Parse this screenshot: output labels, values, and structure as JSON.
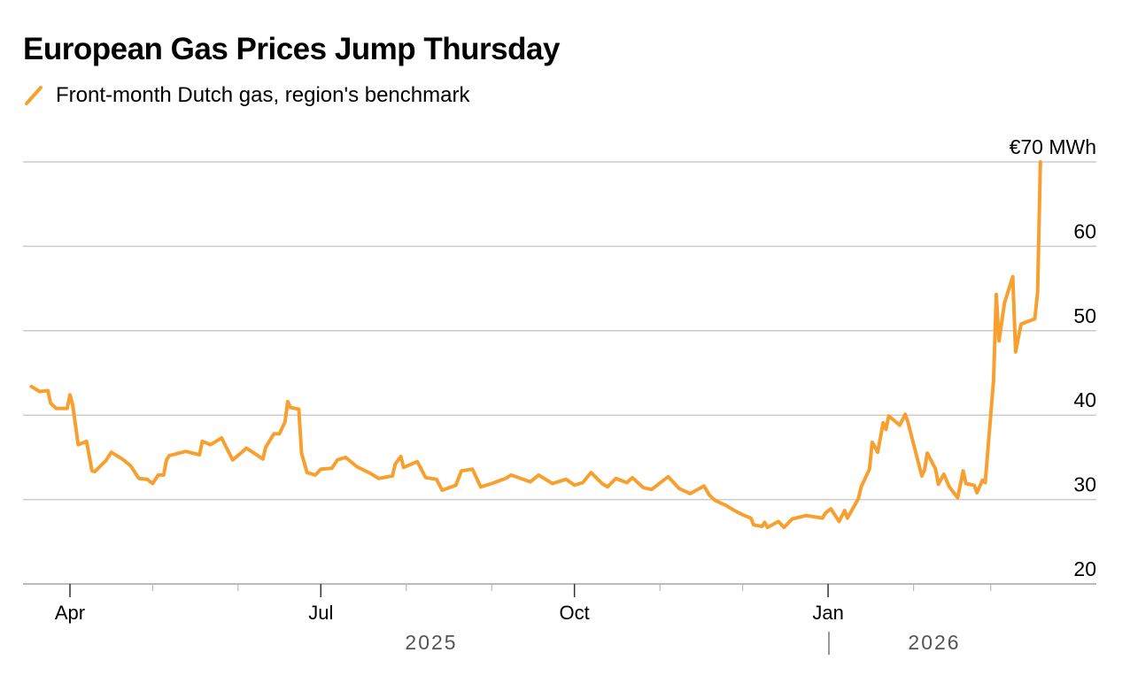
{
  "title": "European Gas Prices Jump Thursday",
  "legend": {
    "label": "Front-month Dutch gas, region's benchmark",
    "icon": "diagonal-line-swatch"
  },
  "colors": {
    "series": "#f7a030",
    "grid": "#cccccc",
    "axis": "#bbbbbb",
    "year_text": "#555555"
  },
  "chart_data": {
    "type": "line",
    "title": "European Gas Prices Jump Thursday",
    "ylabel": "",
    "y_unit_label": "€70 MWh",
    "ylim": [
      20,
      70
    ],
    "yticks": [
      20,
      30,
      40,
      50,
      60,
      70
    ],
    "ytick_labels": [
      "20",
      "30",
      "40",
      "50",
      "60",
      "€70 MWh"
    ],
    "y_axis_side": "right",
    "grid": "horizontal",
    "xlim": [
      "2025-03-14",
      "2026-03-24"
    ],
    "xtick_labels": [
      {
        "date": "2025-04-01",
        "label": "Apr"
      },
      {
        "date": "2025-07-01",
        "label": "Jul"
      },
      {
        "date": "2025-10-01",
        "label": "Oct"
      },
      {
        "date": "2026-01-01",
        "label": "Jan"
      }
    ],
    "year_labels": [
      "2025",
      "2026"
    ],
    "legend_placement": "top-left",
    "series": [
      {
        "name": "Front-month Dutch gas, region's benchmark",
        "points": [
          [
            "2025-03-18",
            43.4
          ],
          [
            "2025-03-21",
            42.8
          ],
          [
            "2025-03-24",
            42.9
          ],
          [
            "2025-03-25",
            41.4
          ],
          [
            "2025-03-27",
            40.8
          ],
          [
            "2025-03-31",
            40.8
          ],
          [
            "2025-04-01",
            42.4
          ],
          [
            "2025-04-02",
            41.2
          ],
          [
            "2025-04-04",
            36.5
          ],
          [
            "2025-04-07",
            36.9
          ],
          [
            "2025-04-09",
            33.4
          ],
          [
            "2025-04-10",
            33.3
          ],
          [
            "2025-04-14",
            34.6
          ],
          [
            "2025-04-16",
            35.6
          ],
          [
            "2025-04-20",
            34.8
          ],
          [
            "2025-04-23",
            34.0
          ],
          [
            "2025-04-26",
            32.5
          ],
          [
            "2025-04-29",
            32.4
          ],
          [
            "2025-05-01",
            31.9
          ],
          [
            "2025-05-03",
            32.9
          ],
          [
            "2025-05-05",
            32.9
          ],
          [
            "2025-05-06",
            34.7
          ],
          [
            "2025-05-07",
            35.2
          ],
          [
            "2025-05-13",
            35.7
          ],
          [
            "2025-05-18",
            35.3
          ],
          [
            "2025-05-19",
            36.9
          ],
          [
            "2025-05-22",
            36.5
          ],
          [
            "2025-05-26",
            37.3
          ],
          [
            "2025-05-30",
            34.7
          ],
          [
            "2025-06-02",
            35.5
          ],
          [
            "2025-06-04",
            36.1
          ],
          [
            "2025-06-10",
            34.8
          ],
          [
            "2025-06-11",
            36.2
          ],
          [
            "2025-06-14",
            37.8
          ],
          [
            "2025-06-16",
            37.8
          ],
          [
            "2025-06-18",
            39.2
          ],
          [
            "2025-06-19",
            41.6
          ],
          [
            "2025-06-20",
            40.9
          ],
          [
            "2025-06-23",
            40.7
          ],
          [
            "2025-06-24",
            35.5
          ],
          [
            "2025-06-26",
            33.2
          ],
          [
            "2025-06-29",
            32.9
          ],
          [
            "2025-07-01",
            33.6
          ],
          [
            "2025-07-05",
            33.7
          ],
          [
            "2025-07-07",
            34.7
          ],
          [
            "2025-07-10",
            35.0
          ],
          [
            "2025-07-14",
            33.9
          ],
          [
            "2025-07-19",
            33.1
          ],
          [
            "2025-07-22",
            32.5
          ],
          [
            "2025-07-27",
            32.8
          ],
          [
            "2025-07-28",
            34.2
          ],
          [
            "2025-07-30",
            35.1
          ],
          [
            "2025-07-31",
            33.8
          ],
          [
            "2025-08-05",
            34.5
          ],
          [
            "2025-08-08",
            32.6
          ],
          [
            "2025-08-12",
            32.4
          ],
          [
            "2025-08-14",
            31.1
          ],
          [
            "2025-08-19",
            31.7
          ],
          [
            "2025-08-21",
            33.4
          ],
          [
            "2025-08-25",
            33.6
          ],
          [
            "2025-08-28",
            31.5
          ],
          [
            "2025-09-01",
            31.9
          ],
          [
            "2025-09-06",
            32.5
          ],
          [
            "2025-09-08",
            32.9
          ],
          [
            "2025-09-15",
            32.1
          ],
          [
            "2025-09-18",
            32.9
          ],
          [
            "2025-09-23",
            31.9
          ],
          [
            "2025-09-28",
            32.4
          ],
          [
            "2025-10-01",
            31.7
          ],
          [
            "2025-10-04",
            32.0
          ],
          [
            "2025-10-07",
            33.2
          ],
          [
            "2025-10-11",
            31.9
          ],
          [
            "2025-10-13",
            31.5
          ],
          [
            "2025-10-16",
            32.5
          ],
          [
            "2025-10-20",
            32.0
          ],
          [
            "2025-10-22",
            32.6
          ],
          [
            "2025-10-26",
            31.4
          ],
          [
            "2025-10-29",
            31.2
          ],
          [
            "2025-11-04",
            32.7
          ],
          [
            "2025-11-08",
            31.3
          ],
          [
            "2025-11-12",
            30.7
          ],
          [
            "2025-11-17",
            31.6
          ],
          [
            "2025-11-19",
            30.5
          ],
          [
            "2025-11-21",
            29.9
          ],
          [
            "2025-11-25",
            29.3
          ],
          [
            "2025-11-28",
            28.7
          ],
          [
            "2025-12-01",
            28.2
          ],
          [
            "2025-12-04",
            27.8
          ],
          [
            "2025-12-05",
            27.0
          ],
          [
            "2025-12-08",
            26.8
          ],
          [
            "2025-12-09",
            27.3
          ],
          [
            "2025-12-10",
            26.7
          ],
          [
            "2025-12-14",
            27.4
          ],
          [
            "2025-12-16",
            26.7
          ],
          [
            "2025-12-19",
            27.7
          ],
          [
            "2025-12-24",
            28.1
          ],
          [
            "2025-12-30",
            27.8
          ],
          [
            "2025-12-31",
            28.4
          ],
          [
            "2026-01-02",
            28.9
          ],
          [
            "2026-01-05",
            27.4
          ],
          [
            "2026-01-07",
            28.7
          ],
          [
            "2026-01-08",
            27.8
          ],
          [
            "2026-01-12",
            30.1
          ],
          [
            "2026-01-13",
            31.5
          ],
          [
            "2026-01-16",
            33.6
          ],
          [
            "2026-01-17",
            36.8
          ],
          [
            "2026-01-19",
            35.6
          ],
          [
            "2026-01-21",
            39.1
          ],
          [
            "2026-01-22",
            38.3
          ],
          [
            "2026-01-23",
            39.9
          ],
          [
            "2026-01-27",
            38.8
          ],
          [
            "2026-01-29",
            40.1
          ],
          [
            "2026-01-30",
            39.1
          ],
          [
            "2026-02-04",
            32.8
          ],
          [
            "2026-02-05",
            33.5
          ],
          [
            "2026-02-06",
            35.5
          ],
          [
            "2026-02-09",
            33.6
          ],
          [
            "2026-02-10",
            31.8
          ],
          [
            "2026-02-12",
            33.0
          ],
          [
            "2026-02-14",
            31.5
          ],
          [
            "2026-02-17",
            30.2
          ],
          [
            "2026-02-19",
            33.4
          ],
          [
            "2026-02-20",
            31.9
          ],
          [
            "2026-02-23",
            31.7
          ],
          [
            "2026-02-24",
            30.8
          ],
          [
            "2026-02-26",
            32.3
          ],
          [
            "2026-02-27",
            32.0
          ],
          [
            "2026-03-02",
            44.1
          ],
          [
            "2026-03-03",
            54.3
          ],
          [
            "2026-03-04",
            48.8
          ],
          [
            "2026-03-06",
            53.3
          ],
          [
            "2026-03-09",
            56.4
          ],
          [
            "2026-03-10",
            47.5
          ],
          [
            "2026-03-12",
            50.8
          ],
          [
            "2026-03-17",
            51.4
          ],
          [
            "2026-03-18",
            54.6
          ],
          [
            "2026-03-19",
            70.0
          ]
        ]
      }
    ]
  }
}
